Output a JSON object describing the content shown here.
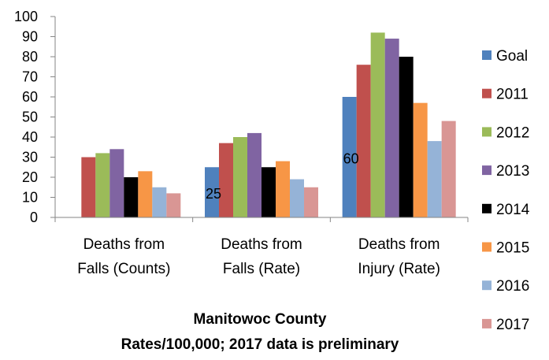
{
  "chart_data": {
    "type": "bar",
    "categories": [
      [
        "Deaths from",
        "Falls (Counts)"
      ],
      [
        "Deaths from",
        "Falls (Rate)"
      ],
      [
        "Deaths from",
        "Injury (Rate)"
      ]
    ],
    "series": [
      {
        "name": "Goal",
        "color": "#4F81BD",
        "values": [
          null,
          25,
          60
        ]
      },
      {
        "name": "2011",
        "color": "#C0504D",
        "values": [
          30,
          37,
          76
        ]
      },
      {
        "name": "2012",
        "color": "#9BBB59",
        "values": [
          32,
          40,
          92
        ]
      },
      {
        "name": "2013",
        "color": "#8064A2",
        "values": [
          34,
          42,
          89
        ]
      },
      {
        "name": "2014",
        "color": "#000000",
        "values": [
          20,
          25,
          80
        ]
      },
      {
        "name": "2015",
        "color": "#F79646",
        "values": [
          23,
          28,
          57
        ]
      },
      {
        "name": "2016",
        "color": "#95B3D7",
        "values": [
          15,
          19,
          38
        ]
      },
      {
        "name": "2017",
        "color": "#D99694",
        "values": [
          12,
          15,
          48
        ]
      }
    ],
    "data_labels": [
      {
        "series": "Goal",
        "category_index": 1,
        "text": "25"
      },
      {
        "series": "Goal",
        "category_index": 2,
        "text": "60"
      }
    ],
    "title_lines": [
      "Manitowoc County",
      "Rates/100,000; 2017 data is preliminary"
    ],
    "xlabel": "",
    "ylabel": "",
    "ylim": [
      0,
      100
    ],
    "yticks": [
      0,
      10,
      20,
      30,
      40,
      50,
      60,
      70,
      80,
      90,
      100
    ],
    "grid": false,
    "legend_position": "right"
  }
}
